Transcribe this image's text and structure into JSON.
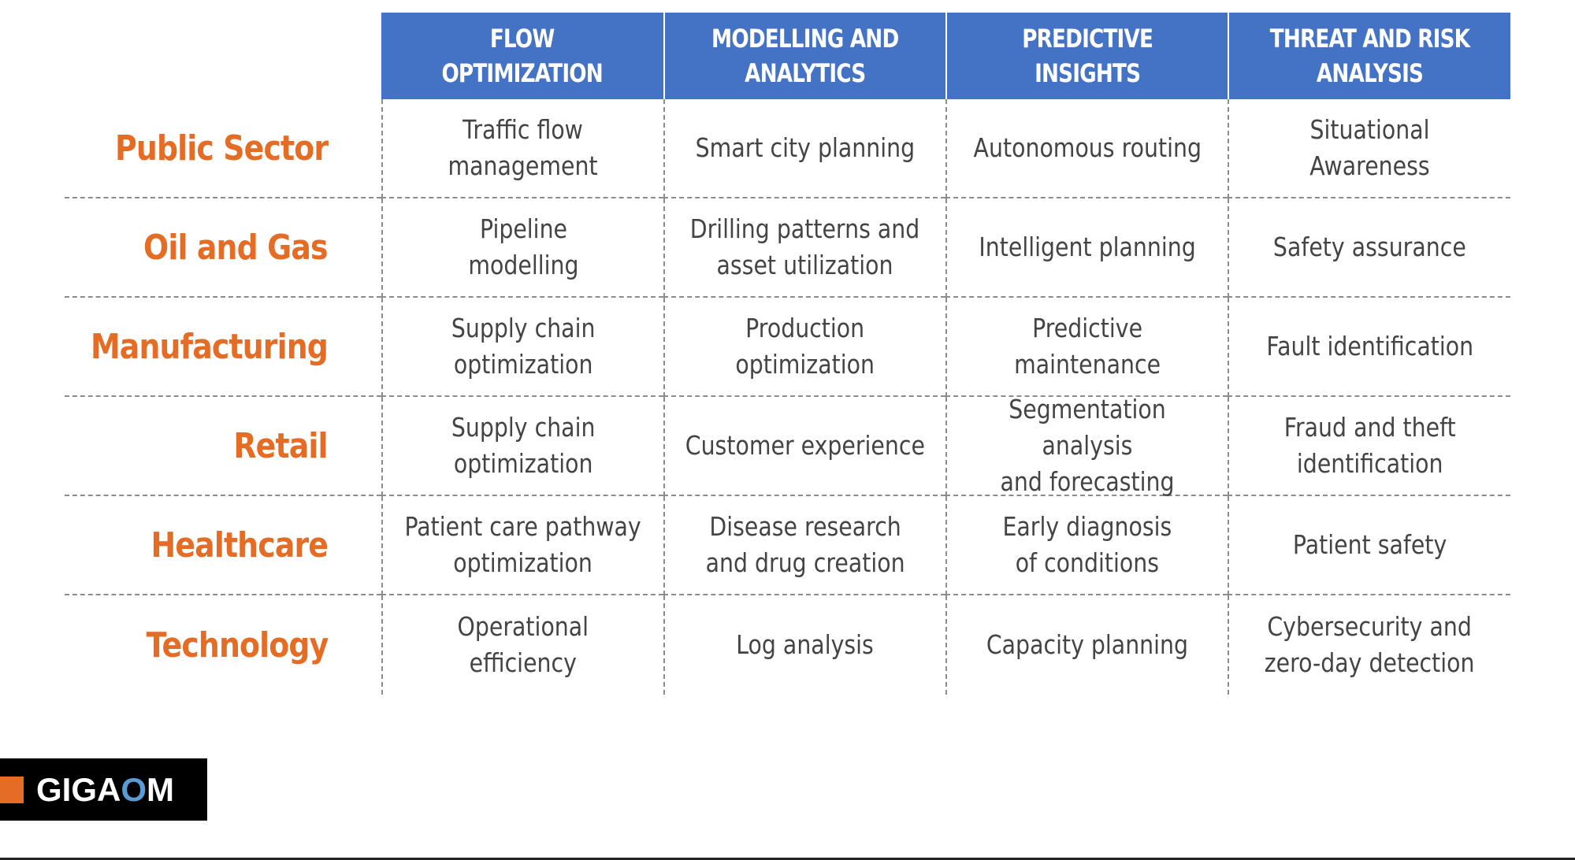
{
  "columns": [
    "FLOW\nOPTIMIZATION",
    "MODELLING AND\nANALYTICS",
    "PREDICTIVE\nINSIGHTS",
    "THREAT AND RISK\nANALYSIS"
  ],
  "rows": [
    {
      "label": "Public Sector",
      "cells": [
        "Traffic flow\nmanagement",
        "Smart city planning",
        "Autonomous routing",
        "Situational Awareness"
      ]
    },
    {
      "label": "Oil and Gas",
      "cells": [
        "Pipeline\nmodelling",
        "Drilling patterns and\nasset utilization",
        "Intelligent planning",
        "Safety assurance"
      ]
    },
    {
      "label": "Manufacturing",
      "cells": [
        "Supply chain\noptimization",
        "Production\noptimization",
        "Predictive\nmaintenance",
        "Fault identification"
      ]
    },
    {
      "label": "Retail",
      "cells": [
        "Supply chain\noptimization",
        "Customer experience",
        "Segmentation analysis\nand forecasting",
        "Fraud and theft\nidentification"
      ]
    },
    {
      "label": "Healthcare",
      "cells": [
        "Patient care pathway\noptimization",
        "Disease research\nand drug creation",
        "Early diagnosis\nof conditions",
        "Patient safety"
      ]
    },
    {
      "label": "Technology",
      "cells": [
        "Operational\nefficiency",
        "Log analysis",
        "Capacity planning",
        "Cybersecurity and\nzero-day detection"
      ]
    }
  ],
  "logo": {
    "text_before": "GIGA",
    "text_accent": "O",
    "text_after": "M"
  },
  "colors": {
    "header_bg": "#4472c4",
    "row_label": "#e46c25",
    "cell_text": "#444444",
    "logo_square": "#e46c25"
  }
}
